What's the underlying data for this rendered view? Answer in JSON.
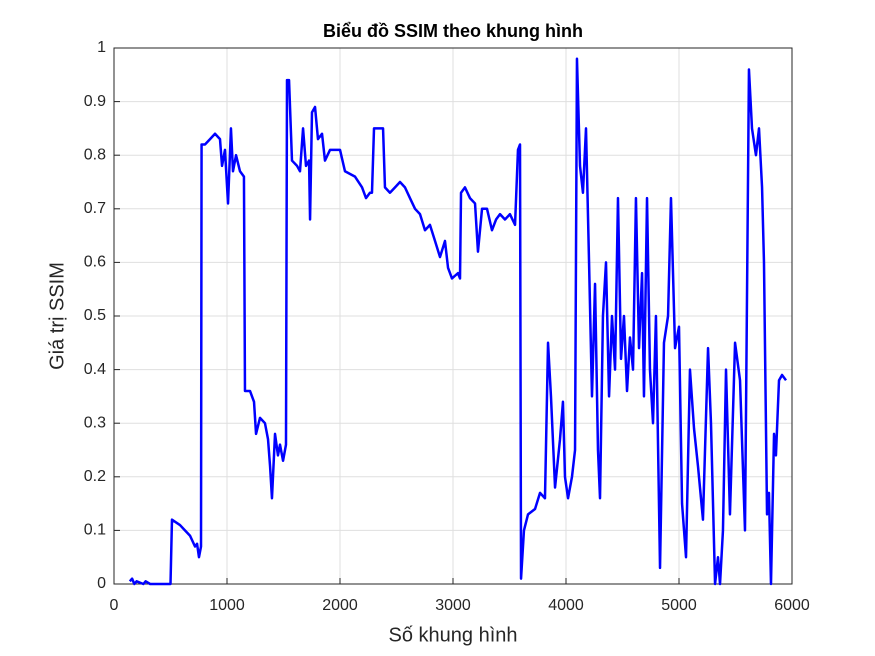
{
  "chart_data": {
    "type": "line",
    "title": "Biểu đồ SSIM theo khung hình",
    "xlabel": "Số khung hình",
    "ylabel": "Giá trị SSIM",
    "x": [
      140,
      160,
      180,
      200,
      260,
      280,
      320,
      500,
      513,
      584,
      628,
      673,
      717,
      735,
      752,
      770,
      775,
      805,
      850,
      894,
      938,
      956,
      982,
      1009,
      1035,
      1053,
      1080,
      1115,
      1150,
      1159,
      1204,
      1239,
      1257,
      1292,
      1336,
      1363,
      1381,
      1398,
      1425,
      1451,
      1469,
      1496,
      1522,
      1531,
      1549,
      1575,
      1620,
      1646,
      1673,
      1699,
      1726,
      1735,
      1752,
      1779,
      1805,
      1841,
      1867,
      1912,
      2000,
      2044,
      2133,
      2195,
      2230,
      2265,
      2283,
      2301,
      2381,
      2398,
      2442,
      2487,
      2531,
      2575,
      2619,
      2664,
      2708,
      2752,
      2796,
      2841,
      2885,
      2929,
      2956,
      2991,
      3044,
      3062,
      3071,
      3106,
      3150,
      3195,
      3221,
      3257,
      3301,
      3345,
      3381,
      3416,
      3460,
      3504,
      3549,
      3575,
      3593,
      3602,
      3628,
      3664,
      3726,
      3770,
      3814,
      3841,
      3867,
      3903,
      3947,
      3973,
      3991,
      4018,
      4053,
      4080,
      4097,
      4124,
      4150,
      4177,
      4204,
      4230,
      4257,
      4283,
      4301,
      4327,
      4354,
      4381,
      4407,
      4434,
      4460,
      4487,
      4513,
      4540,
      4566,
      4593,
      4619,
      4646,
      4673,
      4690,
      4717,
      4743,
      4770,
      4796,
      4832,
      4867,
      4903,
      4929,
      4965,
      5000,
      5027,
      5062,
      5097,
      5133,
      5168,
      5212,
      5257,
      5283,
      5319,
      5345,
      5363,
      5389,
      5416,
      5451,
      5496,
      5540,
      5584,
      5619,
      5646,
      5681,
      5708,
      5735,
      5752,
      5779,
      5796,
      5814,
      5841,
      5858,
      5885,
      5912,
      5947
    ],
    "series": [
      {
        "color": "#0000ff",
        "values": [
          0.005,
          0.01,
          0,
          0.005,
          0,
          0.005,
          0,
          0,
          0.12,
          0.11,
          0.1,
          0.09,
          0.07,
          0.075,
          0.05,
          0.07,
          0.82,
          0.82,
          0.83,
          0.84,
          0.83,
          0.78,
          0.81,
          0.71,
          0.85,
          0.77,
          0.8,
          0.77,
          0.76,
          0.36,
          0.36,
          0.34,
          0.28,
          0.31,
          0.3,
          0.27,
          0.22,
          0.16,
          0.28,
          0.24,
          0.26,
          0.23,
          0.26,
          0.94,
          0.94,
          0.79,
          0.78,
          0.77,
          0.85,
          0.78,
          0.79,
          0.68,
          0.88,
          0.89,
          0.83,
          0.84,
          0.79,
          0.81,
          0.81,
          0.77,
          0.76,
          0.74,
          0.72,
          0.73,
          0.73,
          0.85,
          0.85,
          0.74,
          0.73,
          0.74,
          0.75,
          0.74,
          0.72,
          0.7,
          0.69,
          0.66,
          0.67,
          0.64,
          0.61,
          0.64,
          0.59,
          0.57,
          0.58,
          0.57,
          0.73,
          0.74,
          0.72,
          0.71,
          0.62,
          0.7,
          0.7,
          0.66,
          0.68,
          0.69,
          0.68,
          0.69,
          0.67,
          0.81,
          0.82,
          0.01,
          0.1,
          0.13,
          0.14,
          0.17,
          0.16,
          0.45,
          0.35,
          0.18,
          0.27,
          0.34,
          0.2,
          0.16,
          0.2,
          0.25,
          0.98,
          0.78,
          0.73,
          0.85,
          0.6,
          0.35,
          0.56,
          0.25,
          0.16,
          0.5,
          0.6,
          0.35,
          0.5,
          0.4,
          0.72,
          0.42,
          0.5,
          0.36,
          0.46,
          0.4,
          0.72,
          0.44,
          0.58,
          0.35,
          0.72,
          0.4,
          0.3,
          0.5,
          0.03,
          0.45,
          0.5,
          0.72,
          0.44,
          0.48,
          0.15,
          0.05,
          0.4,
          0.29,
          0.22,
          0.12,
          0.44,
          0.3,
          0,
          0.05,
          0,
          0.1,
          0.4,
          0.13,
          0.45,
          0.38,
          0.1,
          0.96,
          0.85,
          0.8,
          0.85,
          0.74,
          0.6,
          0.13,
          0.17,
          0,
          0.28,
          0.24,
          0.38,
          0.39,
          0.38
        ]
      }
    ],
    "xlim": [
      0,
      6000
    ],
    "xticks": [
      0,
      1000,
      2000,
      3000,
      4000,
      5000,
      6000
    ],
    "ylim": [
      0,
      1
    ],
    "yticks": [
      0,
      0.1,
      0.2,
      0.3,
      0.4,
      0.5,
      0.6,
      0.7,
      0.8,
      0.9,
      1
    ],
    "grid": true
  }
}
